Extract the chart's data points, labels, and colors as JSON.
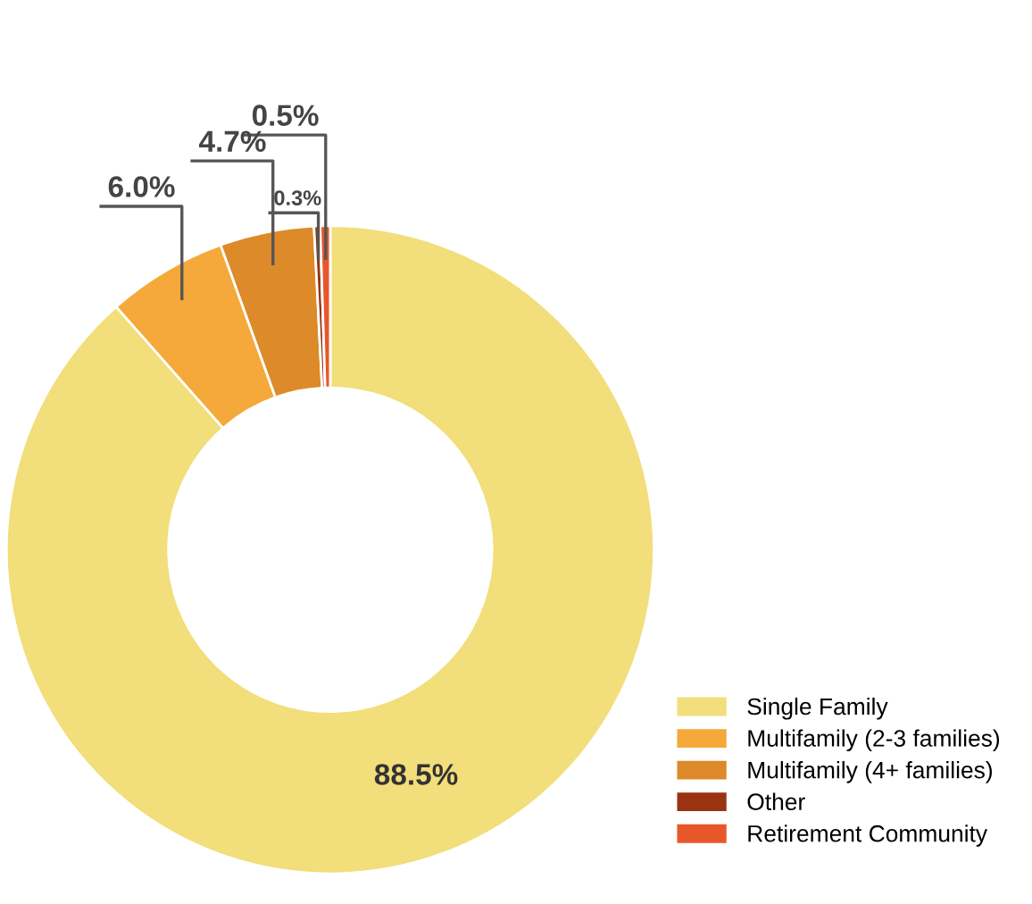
{
  "chart_data": {
    "type": "donut",
    "categories": [
      "Single Family",
      "Multifamily (2-3 families)",
      "Multifamily (4+ families)",
      "Other",
      "Retirement Community"
    ],
    "values": [
      88.5,
      6.0,
      4.7,
      0.3,
      0.5
    ],
    "colors": [
      "#f2de7a",
      "#f5a93a",
      "#dd8a2a",
      "#9a3312",
      "#e8572a"
    ],
    "value_labels": [
      "88.5%",
      "6.0%",
      "4.7%",
      "0.3%",
      "0.5%"
    ],
    "legend": "bottom right"
  }
}
